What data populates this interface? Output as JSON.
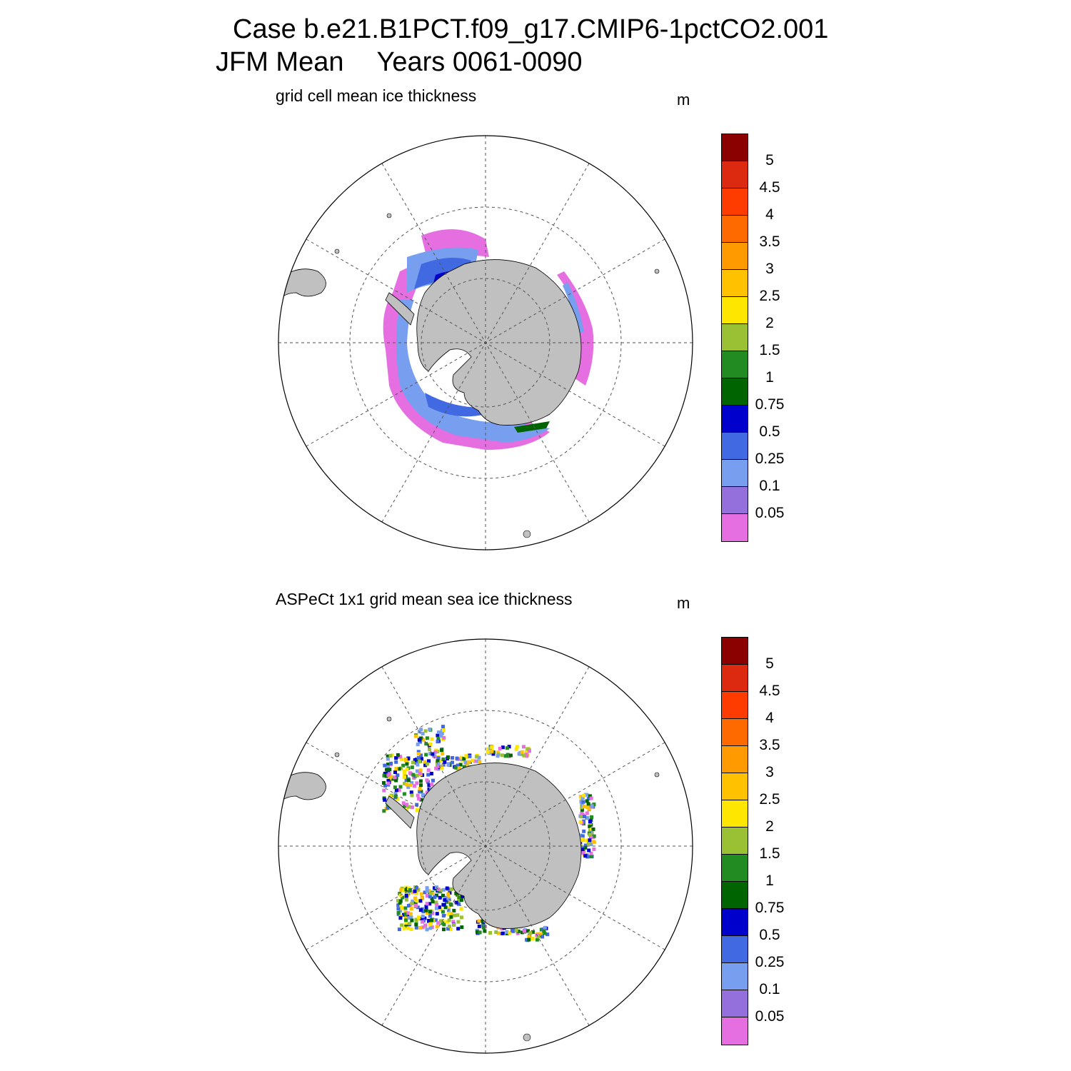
{
  "title": {
    "line1": "Case b.e21.B1PCT.f09_g17.CMIP6-1pctCO2.001",
    "season": "JFM Mean",
    "years": "Years 0061-0090"
  },
  "colorbar": {
    "levels": [
      "5",
      "4.5",
      "4",
      "3.5",
      "3",
      "2.5",
      "2",
      "1.5",
      "1",
      "0.75",
      "0.5",
      "0.25",
      "0.1",
      "0.05"
    ],
    "colors": [
      "#8b0000",
      "#dc2a10",
      "#ff3c00",
      "#ff6a00",
      "#ff9a00",
      "#ffc100",
      "#ffe600",
      "#9ac133",
      "#228b22",
      "#006400",
      "#0000cd",
      "#4169e1",
      "#789ef0",
      "#9370db",
      "#e56ee0"
    ]
  },
  "panels": [
    {
      "id": "model",
      "subtitle": "grid cell mean ice thickness",
      "unit": "m"
    },
    {
      "id": "obs",
      "subtitle": "ASPeCt 1x1 grid mean sea ice thickness",
      "unit": "m"
    }
  ]
}
